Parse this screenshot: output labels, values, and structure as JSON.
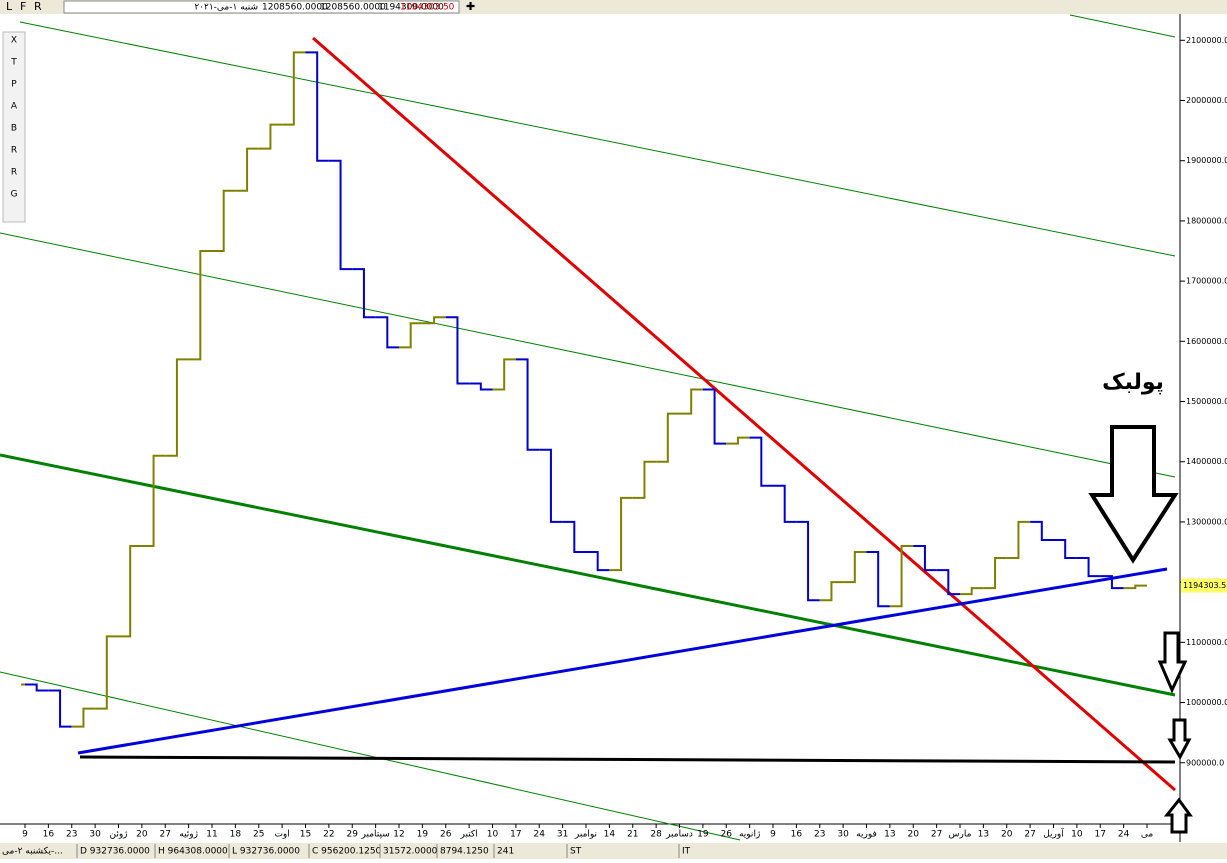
{
  "toolbar": {
    "letters": [
      "L",
      "F",
      "R"
    ],
    "date": "شنبه ۱-می-۲۰۲۱",
    "open": "1208560.0000",
    "high": "1208560.0000",
    "low": "1194300.0000",
    "close": "1194303.50"
  },
  "tools": [
    "X",
    "T",
    "P",
    "A",
    "B",
    "R",
    "R",
    "G"
  ],
  "status_bar": [
    "یکشنبه ۲-می-...",
    "D 932736.0000",
    "H 964308.0000",
    "L 932736.0000",
    "C 956200.1250",
    "31572.0000",
    "8794.1250",
    "241",
    "ST",
    "IT"
  ],
  "chart_data": {
    "type": "step",
    "annotation": "پولبک",
    "last_price_label": "1194303.5",
    "categories": [
      "9",
      "16",
      "23",
      "30",
      "ژوئن",
      "20",
      "27",
      "ژوئیه",
      "11",
      "18",
      "25",
      "اوت",
      "15",
      "22",
      "29",
      "سپتامبر",
      "12",
      "19",
      "26",
      "اکتبر",
      "10",
      "17",
      "24",
      "31",
      "نوامبر",
      "14",
      "21",
      "28",
      "دسامبر",
      "19",
      "26",
      "ژانویه",
      "9",
      "16",
      "23",
      "30",
      "فوریه",
      "13",
      "20",
      "27",
      "مارس",
      "13",
      "20",
      "27",
      "آوریل",
      "10",
      "17",
      "24",
      "می"
    ],
    "series": [
      {
        "up_color": "#808000",
        "down_color": "#0000cc",
        "values": [
          1030000,
          1020000,
          960000,
          990000,
          1110000,
          1260000,
          1410000,
          1570000,
          1750000,
          1850000,
          1920000,
          1960000,
          2080000,
          1900000,
          1720000,
          1640000,
          1590000,
          1630000,
          1640000,
          1530000,
          1520000,
          1570000,
          1420000,
          1300000,
          1250000,
          1220000,
          1340000,
          1400000,
          1480000,
          1520000,
          1430000,
          1440000,
          1360000,
          1300000,
          1170000,
          1200000,
          1250000,
          1160000,
          1260000,
          1220000,
          1180000,
          1190000,
          1240000,
          1300000,
          1270000,
          1240000,
          1210000,
          1190000,
          1194300
        ]
      }
    ],
    "ylim": [
      780000,
      2147000
    ],
    "yticks": [
      {
        "value": 900000,
        "label": "900000.0"
      },
      {
        "value": 1000000,
        "label": "1000000.0"
      },
      {
        "value": 1100000,
        "label": "1100000.0"
      },
      {
        "value": 1200000,
        "label": "1200000.0"
      },
      {
        "value": 1300000,
        "label": "1300000.0"
      },
      {
        "value": 1400000,
        "label": "1400000.0"
      },
      {
        "value": 1500000,
        "label": "1500000.0"
      },
      {
        "value": 1600000,
        "label": "1600000.0"
      },
      {
        "value": 1700000,
        "label": "1700000.0"
      },
      {
        "value": 1800000,
        "label": "1800000.0"
      },
      {
        "value": 1900000,
        "label": "1900000.0"
      },
      {
        "value": 2000000,
        "label": "2000000.0"
      },
      {
        "value": 2100000,
        "label": "2100000.0"
      }
    ]
  }
}
